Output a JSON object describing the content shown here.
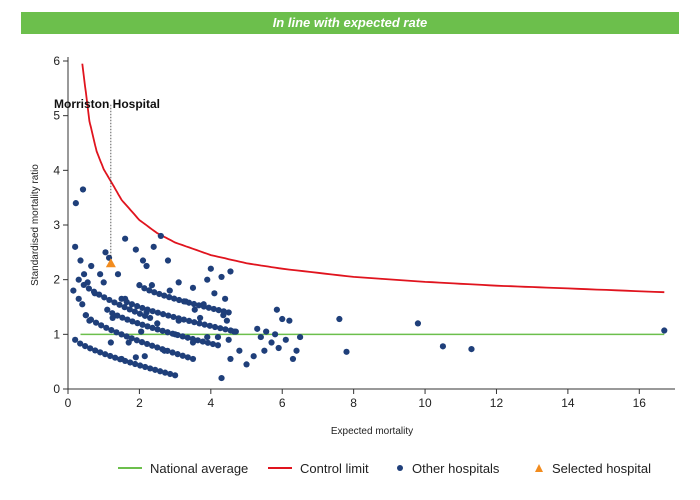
{
  "banner": "In line with expected rate",
  "legend": {
    "national_average": "National average",
    "control_limit": "Control limit",
    "other_hospitals": "Other hospitals",
    "selected_hospital": "Selected hospital"
  },
  "colors": {
    "banner": "#6cbf4c",
    "national_average": "#6cbf4c",
    "control_limit": "#e0141e",
    "other_hospitals": "#1f3f7a",
    "selected_hospital": "#f28c1e"
  },
  "chart_data": {
    "type": "scatter",
    "title": "",
    "xlabel": "Expected mortality",
    "ylabel": "Standardised mortality ratio",
    "xlim": [
      0,
      17
    ],
    "ylim": [
      0,
      6
    ],
    "xticks": [
      0,
      2,
      4,
      6,
      8,
      10,
      12,
      14,
      16
    ],
    "yticks": [
      0,
      1,
      2,
      3,
      4,
      5,
      6
    ],
    "grid": false,
    "legend_position": "bottom",
    "national_average": {
      "name": "National average",
      "y": 1,
      "x_range": [
        0.35,
        16.7
      ]
    },
    "control_limit": {
      "name": "Control limit",
      "x": [
        0.4,
        0.6,
        0.8,
        1.0,
        1.2,
        1.5,
        2.0,
        2.5,
        3.0,
        4.0,
        5.0,
        6.0,
        8.0,
        10.0,
        12.0,
        14.0,
        16.7
      ],
      "y": [
        5.95,
        4.9,
        4.35,
        4.02,
        3.8,
        3.46,
        3.09,
        2.85,
        2.68,
        2.45,
        2.3,
        2.2,
        2.05,
        1.96,
        1.89,
        1.84,
        1.77
      ]
    },
    "selected_hospital": {
      "name": "Selected hospital",
      "label": "Morriston Hospital",
      "x": 1.2,
      "y": 2.3
    },
    "other_hospitals": {
      "name": "Other hospitals",
      "points": [
        [
          0.15,
          1.8
        ],
        [
          0.2,
          2.6
        ],
        [
          0.22,
          3.4
        ],
        [
          0.3,
          1.65
        ],
        [
          0.35,
          2.35
        ],
        [
          0.4,
          1.55
        ],
        [
          0.42,
          3.65
        ],
        [
          0.45,
          2.1
        ],
        [
          0.5,
          1.35
        ],
        [
          0.55,
          1.95
        ],
        [
          0.6,
          1.25
        ],
        [
          0.65,
          2.25
        ],
        [
          0.75,
          1.75
        ],
        [
          0.9,
          2.1
        ],
        [
          1.0,
          1.95
        ],
        [
          1.05,
          2.5
        ],
        [
          1.15,
          2.4
        ],
        [
          1.25,
          1.3
        ],
        [
          1.4,
          2.1
        ],
        [
          1.6,
          2.75
        ],
        [
          1.9,
          2.55
        ],
        [
          2.1,
          2.35
        ],
        [
          2.2,
          2.25
        ],
        [
          2.4,
          2.6
        ],
        [
          2.6,
          2.8
        ],
        [
          2.8,
          2.35
        ],
        [
          3.1,
          1.95
        ],
        [
          3.5,
          1.85
        ],
        [
          3.9,
          2.0
        ],
        [
          4.0,
          2.2
        ],
        [
          4.3,
          2.05
        ],
        [
          4.55,
          2.15
        ],
        [
          1.2,
          0.85
        ],
        [
          1.5,
          0.55
        ],
        [
          1.6,
          1.65
        ],
        [
          1.7,
          0.85
        ],
        [
          1.9,
          0.58
        ],
        [
          2.05,
          1.05
        ],
        [
          2.15,
          0.6
        ],
        [
          2.2,
          1.4
        ],
        [
          2.35,
          1.9
        ],
        [
          2.5,
          1.2
        ],
        [
          2.7,
          0.7
        ],
        [
          2.85,
          1.8
        ],
        [
          3.0,
          1.0
        ],
        [
          3.1,
          1.25
        ],
        [
          3.3,
          1.6
        ],
        [
          3.5,
          0.85
        ],
        [
          3.55,
          1.45
        ],
        [
          3.7,
          1.3
        ],
        [
          3.8,
          1.55
        ],
        [
          3.9,
          0.95
        ],
        [
          4.1,
          1.75
        ],
        [
          4.2,
          0.95
        ],
        [
          4.3,
          0.2
        ],
        [
          4.35,
          1.35
        ],
        [
          4.4,
          1.65
        ],
        [
          4.45,
          1.25
        ],
        [
          4.5,
          0.9
        ],
        [
          4.55,
          0.55
        ],
        [
          4.65,
          1.05
        ],
        [
          4.8,
          0.7
        ],
        [
          5.0,
          0.45
        ],
        [
          5.2,
          0.6
        ],
        [
          5.3,
          1.1
        ],
        [
          5.4,
          0.95
        ],
        [
          5.5,
          0.7
        ],
        [
          5.55,
          1.05
        ],
        [
          5.7,
          0.85
        ],
        [
          5.8,
          1.0
        ],
        [
          5.85,
          1.45
        ],
        [
          5.9,
          0.75
        ],
        [
          6.0,
          1.28
        ],
        [
          6.1,
          0.9
        ],
        [
          6.2,
          1.25
        ],
        [
          6.3,
          0.55
        ],
        [
          6.4,
          0.7
        ],
        [
          6.5,
          0.95
        ],
        [
          7.6,
          1.28
        ],
        [
          7.8,
          0.68
        ],
        [
          9.8,
          1.2
        ],
        [
          10.5,
          0.78
        ],
        [
          11.3,
          0.73
        ],
        [
          16.7,
          1.07
        ]
      ],
      "bands": [
        {
          "x_range": [
            0.2,
            3.0
          ],
          "y_start": 0.9,
          "y_end": 0.25
        },
        {
          "x_range": [
            0.5,
            3.5
          ],
          "y_start": 1.35,
          "y_end": 0.55
        },
        {
          "x_range": [
            1.1,
            4.2
          ],
          "y_start": 1.45,
          "y_end": 0.8
        },
        {
          "x_range": [
            1.5,
            4.7
          ],
          "y_start": 1.65,
          "y_end": 1.05
        },
        {
          "x_range": [
            2.0,
            4.5
          ],
          "y_start": 1.9,
          "y_end": 1.4
        },
        {
          "x_range": [
            0.3,
            2.3
          ],
          "y_start": 2.0,
          "y_end": 1.3
        }
      ]
    }
  }
}
